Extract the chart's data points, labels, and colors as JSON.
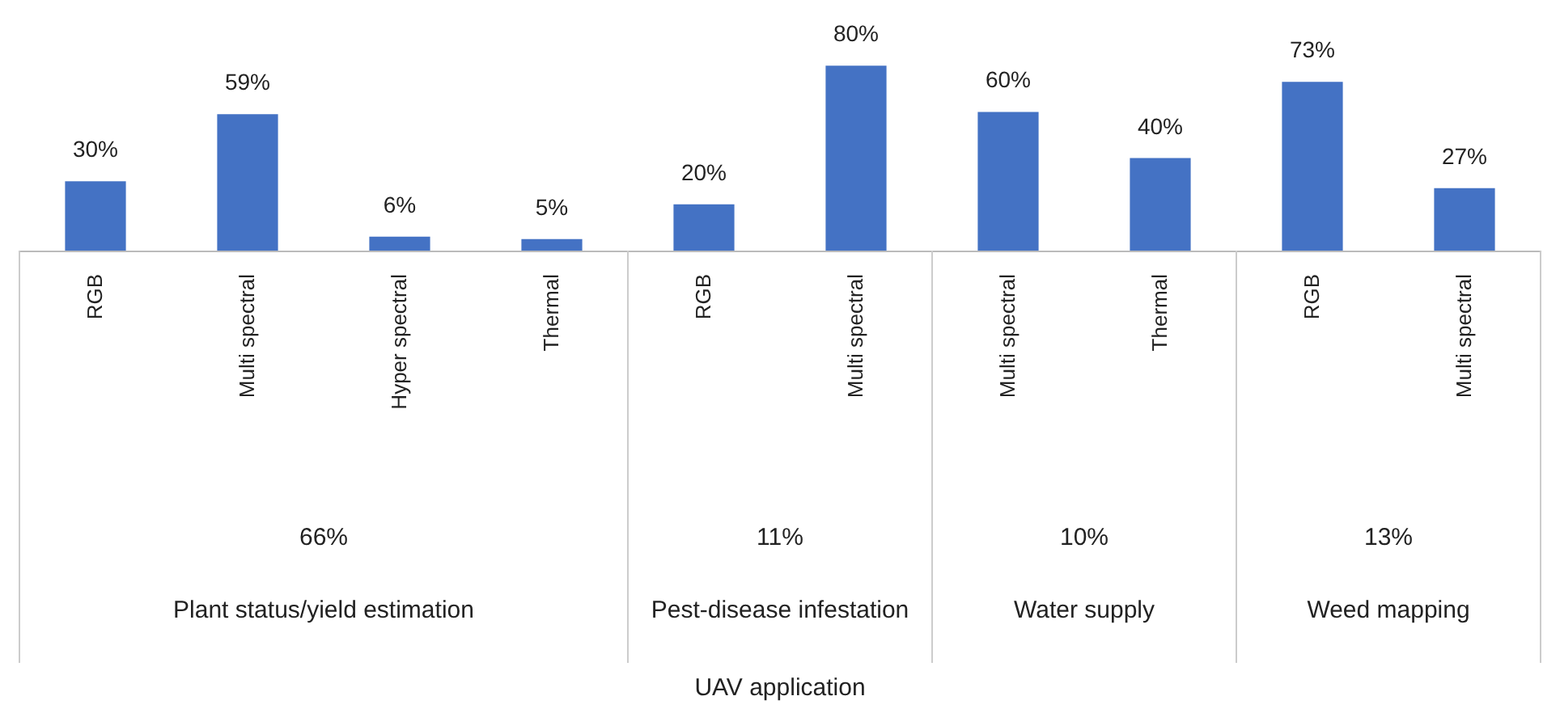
{
  "chart_data": {
    "type": "bar",
    "categories": [
      "RGB",
      "Multi spectral",
      "Hyper spectral",
      "Thermal",
      "RGB",
      "Multi spectral",
      "Multi spectral",
      "Thermal",
      "RGB",
      "Multi spectral"
    ],
    "values": [
      30,
      59,
      6,
      5,
      20,
      80,
      60,
      40,
      73,
      27
    ],
    "value_labels": [
      "30%",
      "59%",
      "6%",
      "5%",
      "20%",
      "80%",
      "60%",
      "40%",
      "73%",
      "27%"
    ],
    "color": "#4472c4",
    "annotations": [
      "66%",
      "Plant status/yield estimation",
      "11%",
      "Pest-disease infestation",
      "10%",
      "Water supply",
      "13%",
      "Weed mapping",
      "UAV application"
    ],
    "grid": false
  }
}
